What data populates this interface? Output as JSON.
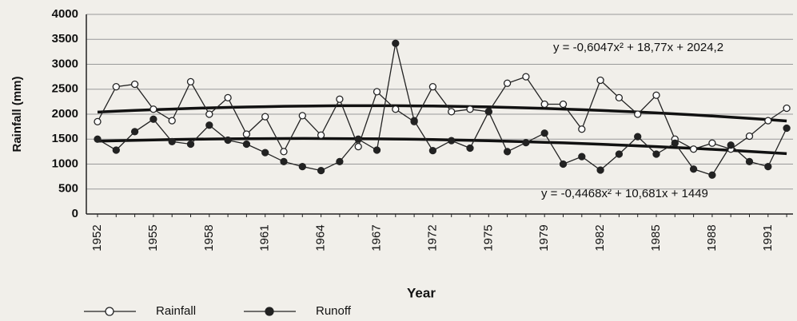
{
  "chart_data": {
    "type": "line",
    "y_label": "Rainfall (mm)",
    "x_label": "Year",
    "categories": [
      "1952",
      null,
      null,
      "1955",
      null,
      null,
      "1958",
      null,
      null,
      "1961",
      null,
      null,
      "1964",
      null,
      null,
      "1967",
      null,
      null,
      "1972",
      null,
      null,
      "1975",
      null,
      null,
      "1979",
      null,
      null,
      "1982",
      null,
      null,
      "1985",
      null,
      null,
      "1988",
      null,
      null,
      "1991",
      null
    ],
    "series": [
      {
        "name": "Rainfall",
        "color": "#222222",
        "marker": "open",
        "values": [
          1850,
          2550,
          2600,
          2100,
          1870,
          2650,
          2000,
          2330,
          1600,
          1950,
          1250,
          1970,
          1580,
          2300,
          1350,
          2450,
          2100,
          1850,
          2550,
          2050,
          2100,
          2050,
          2620,
          2750,
          2200,
          2200,
          1700,
          2680,
          2330,
          2000,
          2380,
          1500,
          1300,
          1420,
          1300,
          1560,
          1870,
          2120
        ]
      },
      {
        "name": "Runoff",
        "color": "#222222",
        "marker": "filled",
        "values": [
          1500,
          1280,
          1650,
          1900,
          1450,
          1400,
          1780,
          1480,
          1400,
          1230,
          1050,
          950,
          870,
          1050,
          1500,
          1280,
          3420,
          1870,
          1270,
          1470,
          1320,
          2050,
          1250,
          1430,
          1620,
          1000,
          1150,
          880,
          1200,
          1550,
          1200,
          1420,
          900,
          780,
          1380,
          1050,
          950,
          1720
        ]
      }
    ],
    "trendlines": [
      {
        "equation": "y = -0,6047x² + 18,77x + 2024,2",
        "values": [
          2042,
          2059,
          2075,
          2090,
          2103,
          2115,
          2126,
          2136,
          2144,
          2151,
          2158,
          2162,
          2166,
          2169,
          2170,
          2170,
          2169,
          2166,
          2163,
          2158,
          2152,
          2145,
          2136,
          2126,
          2116,
          2103,
          2090,
          2076,
          2060,
          2043,
          2025,
          2006,
          1985,
          1963,
          1940,
          1916,
          1891,
          1864
        ]
      },
      {
        "equation": "y = -0,4468x² + 10,681x + 1449",
        "values": [
          1459,
          1469,
          1477,
          1485,
          1491,
          1497,
          1502,
          1506,
          1509,
          1511,
          1512,
          1513,
          1512,
          1511,
          1509,
          1506,
          1502,
          1497,
          1491,
          1484,
          1476,
          1468,
          1458,
          1448,
          1437,
          1425,
          1412,
          1398,
          1383,
          1367,
          1351,
          1333,
          1315,
          1296,
          1276,
          1254,
          1232,
          1210
        ]
      }
    ],
    "ylim": [
      0,
      4000
    ],
    "yticks": [
      0,
      500,
      1000,
      1500,
      2000,
      2500,
      3000,
      3500,
      4000
    ],
    "grid": true
  }
}
